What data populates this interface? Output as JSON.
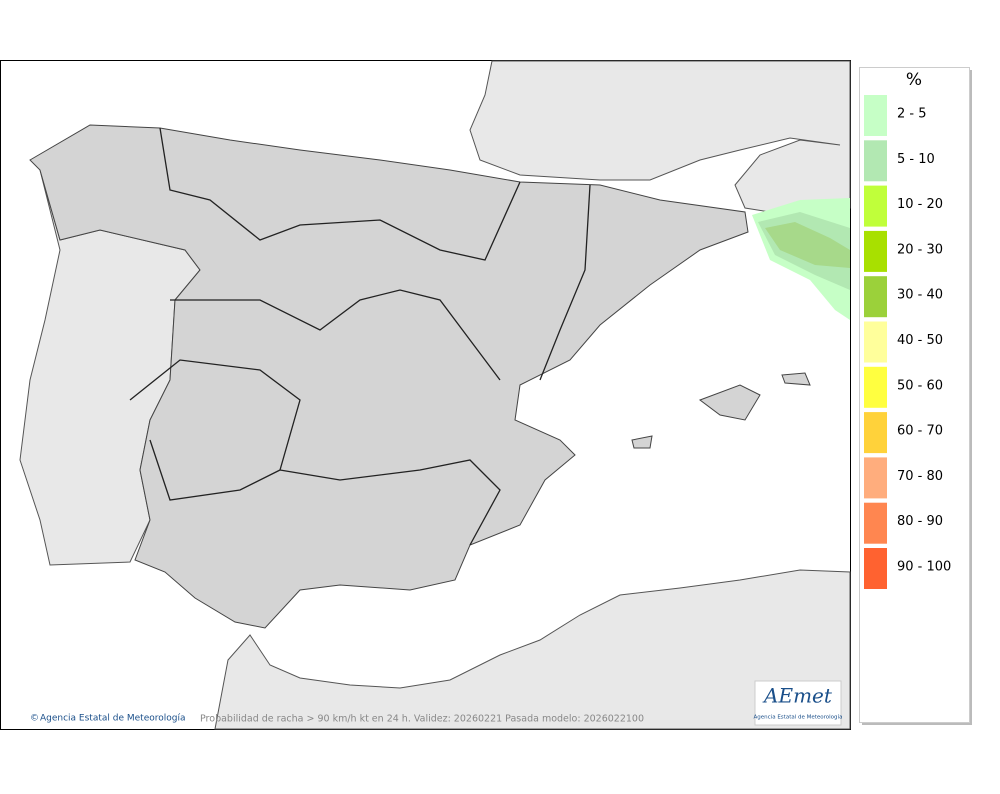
{
  "legend": {
    "title": "%",
    "items": [
      {
        "label": "2 - 5",
        "color": "#c6ffc6"
      },
      {
        "label": "5 - 10",
        "color": "#b2e8b2"
      },
      {
        "label": "10 - 20",
        "color": "#c0ff3a"
      },
      {
        "label": "20 - 30",
        "color": "#a8e000"
      },
      {
        "label": "30 - 40",
        "color": "#9bd13a"
      },
      {
        "label": "40 - 50",
        "color": "#ffff9b"
      },
      {
        "label": "50 - 60",
        "color": "#ffff40"
      },
      {
        "label": "60 - 70",
        "color": "#ffd23a"
      },
      {
        "label": "70 - 80",
        "color": "#ffad7d"
      },
      {
        "label": "80 - 90",
        "color": "#ff8650"
      },
      {
        "label": "90 - 100",
        "color": "#ff6230"
      }
    ]
  },
  "credit": "Agencia Estatal de Meteorología",
  "caption": "Probabilidad de racha > 90 km/h kt en 24 h. Validez: 20260221 Pasada modelo: 2026022100",
  "logo": {
    "text": "AEmet",
    "subtitle": "Agencia Estatal de Meteorología"
  }
}
